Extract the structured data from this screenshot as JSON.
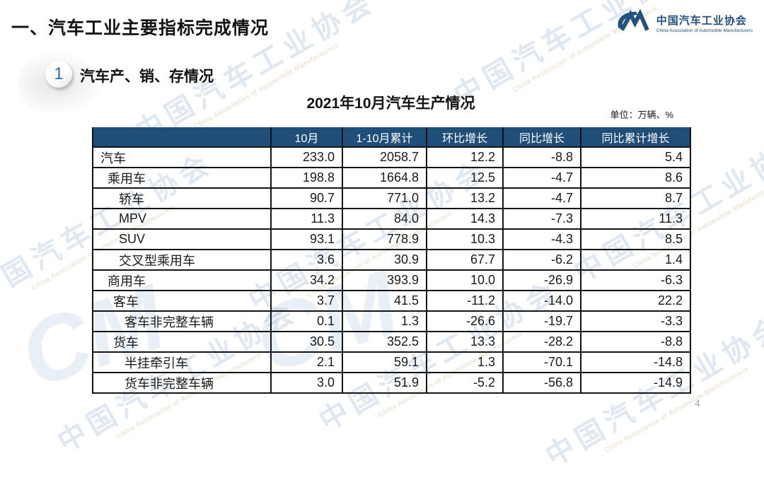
{
  "page": {
    "main_title": "一、汽车工业主要指标完成情况",
    "section_number": "1",
    "section_title": "汽车产、销、存情况",
    "page_number": "4"
  },
  "logo": {
    "icon": "cm-logo-icon",
    "name_cn": "中国汽车工业协会",
    "name_en": "China Association of Automobile Manufacturers",
    "color": "#24527E"
  },
  "watermark": {
    "text_cn": "中国汽车工业协会",
    "text_en": "China Association of Automobile Manufacturers",
    "monogram": "CM"
  },
  "table": {
    "title": "2021年10月汽车生产情况",
    "unit": "单位：万辆、%",
    "columns": [
      "",
      "10月",
      "1-10月累计",
      "环比增长",
      "同比增长",
      "同比累计增长"
    ],
    "rows": [
      {
        "label": "汽车",
        "values": [
          "233.0",
          "2058.7",
          "12.2",
          "-8.8",
          "5.4"
        ],
        "indent": 10,
        "style": "blue"
      },
      {
        "label": "乘用车",
        "values": [
          "198.8",
          "1664.8",
          "12.5",
          "-4.7",
          "8.6"
        ],
        "indent": 20,
        "style": "grey"
      },
      {
        "label": "轿车",
        "values": [
          "90.7",
          "771.0",
          "13.2",
          "-4.7",
          "8.7"
        ],
        "indent": 36,
        "style": "plain"
      },
      {
        "label": "MPV",
        "values": [
          "11.3",
          "84.0",
          "14.3",
          "-7.3",
          "11.3"
        ],
        "indent": 36,
        "style": "plain"
      },
      {
        "label": "SUV",
        "values": [
          "93.1",
          "778.9",
          "10.3",
          "-4.3",
          "8.5"
        ],
        "indent": 36,
        "style": "plain"
      },
      {
        "label": "交叉型乘用车",
        "values": [
          "3.6",
          "30.9",
          "67.7",
          "-6.2",
          "1.4"
        ],
        "indent": 36,
        "style": "plain"
      },
      {
        "label": "商用车",
        "values": [
          "34.2",
          "393.9",
          "10.0",
          "-26.9",
          "-6.3"
        ],
        "indent": 20,
        "style": "grey"
      },
      {
        "label": "客车",
        "values": [
          "3.7",
          "41.5",
          "-11.2",
          "-14.0",
          "22.2"
        ],
        "indent": 28,
        "style": "plain"
      },
      {
        "label": "客车非完整车辆",
        "values": [
          "0.1",
          "1.3",
          "-26.6",
          "-19.7",
          "-3.3"
        ],
        "indent": 44,
        "style": "plain"
      },
      {
        "label": "货车",
        "values": [
          "30.5",
          "352.5",
          "13.3",
          "-28.2",
          "-8.8"
        ],
        "indent": 28,
        "style": "plain"
      },
      {
        "label": "半挂牵引车",
        "values": [
          "2.1",
          "59.1",
          "1.3",
          "-70.1",
          "-14.8"
        ],
        "indent": 44,
        "style": "plain"
      },
      {
        "label": "货车非完整车辆",
        "values": [
          "3.0",
          "51.9",
          "-5.2",
          "-56.8",
          "-14.9"
        ],
        "indent": 44,
        "style": "plain"
      }
    ]
  },
  "colors": {
    "header_bg": "#1F4E79",
    "header_text": "#FFFFFF",
    "row_blue": "#C7DBEF",
    "row_grey": "#DADADA",
    "border": "#141414",
    "accent_blue": "#24527E",
    "page_number_grey": "#A6A6A6"
  }
}
